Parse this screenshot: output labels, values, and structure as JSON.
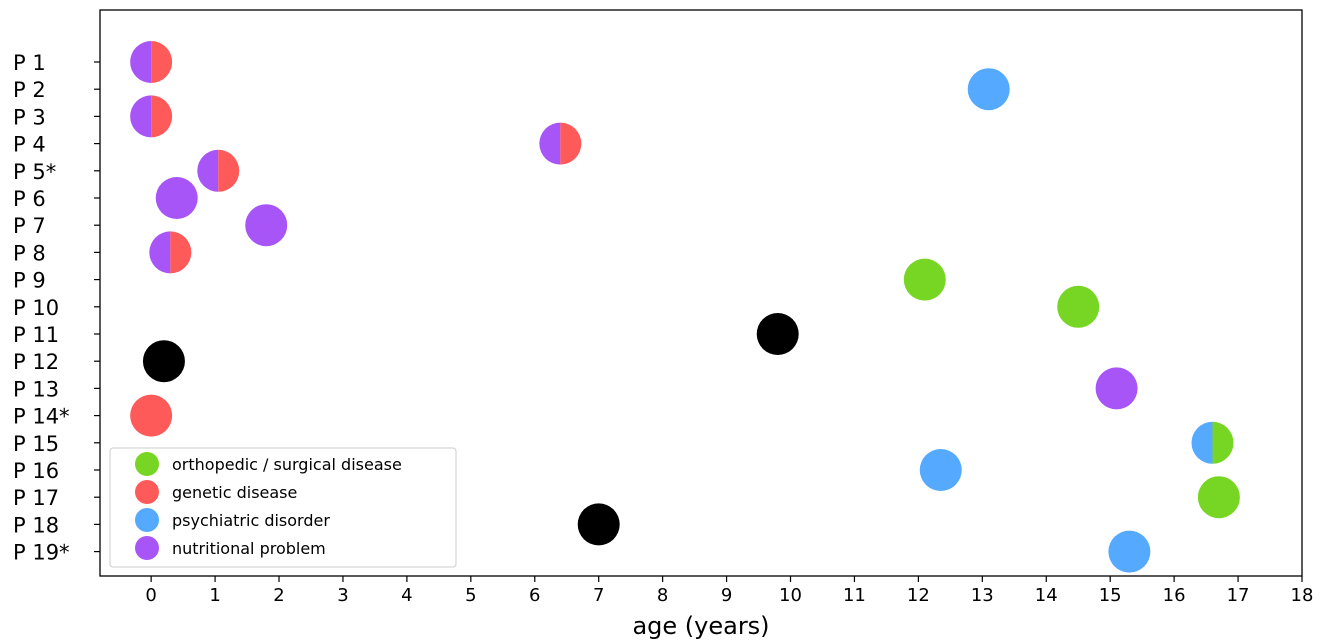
{
  "chart_data": {
    "type": "scatter",
    "title": "",
    "xlabel": "age (years)",
    "ylabel": "",
    "xlim": [
      -0.8,
      18
    ],
    "x_ticks": [
      0,
      1,
      2,
      3,
      4,
      5,
      6,
      7,
      8,
      9,
      10,
      11,
      12,
      13,
      14,
      15,
      16,
      17,
      18
    ],
    "patients": [
      "P 1",
      "P 2",
      "P 3",
      "P 4",
      "P 5*",
      "P 6",
      "P 7",
      "P 8",
      "P 9",
      "P 10",
      "P 11",
      "P 12",
      "P 13",
      "P 14*",
      "P 15",
      "P 16",
      "P 17",
      "P 18",
      "P 19*"
    ],
    "grid": false,
    "legend_position": "bottom-left",
    "categories": [
      {
        "key": "ortho",
        "label": "orthopedic / surgical disease",
        "color": "#77d623"
      },
      {
        "key": "genetic",
        "label": "genetic disease",
        "color": "#ff5a5a"
      },
      {
        "key": "psych",
        "label": "psychiatric disorder",
        "color": "#55aaff"
      },
      {
        "key": "nutri",
        "label": "nutritional problem",
        "color": "#a855f7"
      }
    ],
    "unlabeled_color": "#000000",
    "points": [
      {
        "patient": "P 1",
        "age": 0.0,
        "left": "nutri",
        "right": "genetic"
      },
      {
        "patient": "P 2",
        "age": 13.1,
        "left": "psych",
        "right": "psych"
      },
      {
        "patient": "P 3",
        "age": 0.0,
        "left": "nutri",
        "right": "genetic"
      },
      {
        "patient": "P 4",
        "age": 6.4,
        "left": "nutri",
        "right": "genetic"
      },
      {
        "patient": "P 5*",
        "age": 1.05,
        "left": "nutri",
        "right": "genetic"
      },
      {
        "patient": "P 6",
        "age": 0.4,
        "left": "nutri",
        "right": "nutri"
      },
      {
        "patient": "P 7",
        "age": 1.8,
        "left": "nutri",
        "right": "nutri"
      },
      {
        "patient": "P 8",
        "age": 0.3,
        "left": "nutri",
        "right": "genetic"
      },
      {
        "patient": "P 9",
        "age": 12.1,
        "left": "ortho",
        "right": "ortho"
      },
      {
        "patient": "P 10",
        "age": 14.5,
        "left": "ortho",
        "right": "ortho"
      },
      {
        "patient": "P 11",
        "age": 9.8,
        "left": "none",
        "right": "none"
      },
      {
        "patient": "P 12",
        "age": 0.2,
        "left": "none",
        "right": "none"
      },
      {
        "patient": "P 13",
        "age": 15.1,
        "left": "nutri",
        "right": "nutri"
      },
      {
        "patient": "P 14*",
        "age": 0.0,
        "left": "genetic",
        "right": "genetic"
      },
      {
        "patient": "P 15",
        "age": 16.6,
        "left": "psych",
        "right": "ortho"
      },
      {
        "patient": "P 16",
        "age": 12.35,
        "left": "psych",
        "right": "psych"
      },
      {
        "patient": "P 17",
        "age": 16.7,
        "left": "ortho",
        "right": "ortho"
      },
      {
        "patient": "P 18",
        "age": 7.0,
        "left": "none",
        "right": "none"
      },
      {
        "patient": "P 19*",
        "age": 15.3,
        "left": "psych",
        "right": "psych"
      }
    ]
  }
}
